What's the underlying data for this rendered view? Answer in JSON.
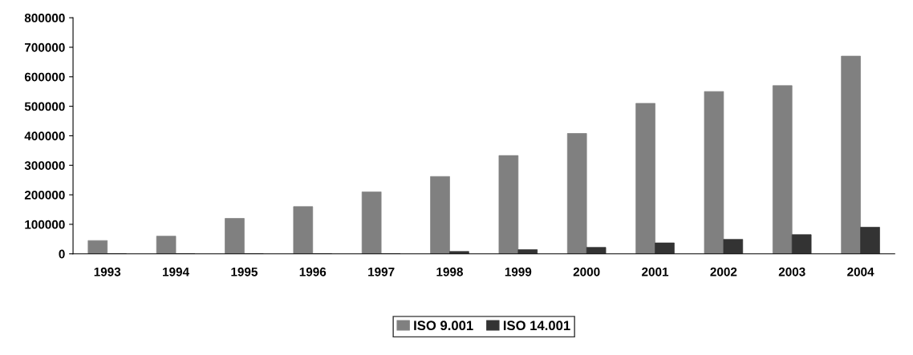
{
  "chart_data": {
    "type": "bar",
    "categories": [
      "1993",
      "1994",
      "1995",
      "1996",
      "1997",
      "1998",
      "1999",
      "2000",
      "2001",
      "2002",
      "2003",
      "2004"
    ],
    "series": [
      {
        "name": "ISO 9.001",
        "color": "#808080",
        "values": [
          45000,
          60000,
          120000,
          160000,
          210000,
          262000,
          333000,
          408000,
          510000,
          550000,
          570000,
          670000
        ]
      },
      {
        "name": "ISO 14.001",
        "color": "#333333",
        "values": [
          0,
          0,
          0,
          0,
          0,
          8000,
          14000,
          22000,
          37000,
          49000,
          65000,
          90000
        ]
      }
    ],
    "ylim": [
      0,
      800000
    ],
    "yticks": [
      0,
      100000,
      200000,
      300000,
      400000,
      500000,
      600000,
      700000,
      800000
    ],
    "grid": false,
    "legend": "bottom"
  }
}
